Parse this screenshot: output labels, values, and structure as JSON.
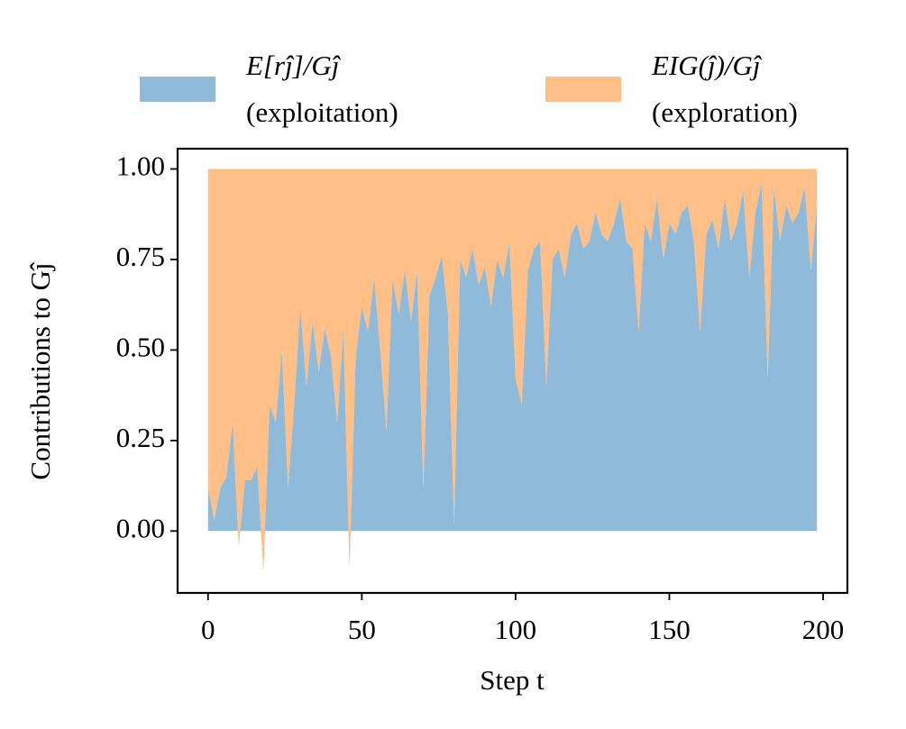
{
  "chart_data": {
    "type": "stackplot",
    "ylabel": "Contributions to Gĵ",
    "xlabel": "Step t",
    "x": [
      0,
      2,
      4,
      6,
      8,
      10,
      12,
      14,
      16,
      18,
      20,
      22,
      24,
      26,
      28,
      30,
      32,
      34,
      36,
      38,
      40,
      42,
      44,
      46,
      48,
      50,
      52,
      54,
      56,
      58,
      60,
      62,
      64,
      66,
      68,
      70,
      72,
      74,
      76,
      78,
      80,
      82,
      84,
      86,
      88,
      90,
      92,
      94,
      96,
      98,
      100,
      102,
      104,
      106,
      108,
      110,
      112,
      114,
      116,
      118,
      120,
      122,
      124,
      126,
      128,
      130,
      132,
      134,
      136,
      138,
      140,
      142,
      144,
      146,
      148,
      150,
      152,
      154,
      156,
      158,
      160,
      162,
      164,
      166,
      168,
      170,
      172,
      174,
      176,
      178,
      180,
      182,
      184,
      186,
      188,
      190,
      192,
      194,
      196,
      198
    ],
    "series": [
      {
        "name": "E[rĵ]/Gĵ",
        "subname": "(exploitation)",
        "color": "#8fbad9",
        "values": [
          0.12,
          0.03,
          0.12,
          0.15,
          0.3,
          -0.04,
          0.14,
          0.14,
          0.18,
          -0.11,
          0.35,
          0.3,
          0.5,
          0.12,
          0.35,
          0.62,
          0.4,
          0.58,
          0.44,
          0.56,
          0.48,
          0.3,
          0.56,
          -0.1,
          0.48,
          0.62,
          0.55,
          0.7,
          0.5,
          0.28,
          0.7,
          0.6,
          0.72,
          0.58,
          0.72,
          0.12,
          0.65,
          0.7,
          0.76,
          0.6,
          0.02,
          0.75,
          0.7,
          0.78,
          0.68,
          0.73,
          0.62,
          0.75,
          0.7,
          0.8,
          0.42,
          0.35,
          0.72,
          0.78,
          0.8,
          0.4,
          0.75,
          0.78,
          0.7,
          0.82,
          0.85,
          0.78,
          0.8,
          0.88,
          0.82,
          0.8,
          0.85,
          0.92,
          0.8,
          0.78,
          0.55,
          0.85,
          0.8,
          0.92,
          0.75,
          0.85,
          0.82,
          0.88,
          0.9,
          0.8,
          0.55,
          0.82,
          0.86,
          0.78,
          0.92,
          0.8,
          0.85,
          0.94,
          0.7,
          0.88,
          0.96,
          0.42,
          0.95,
          0.8,
          0.9,
          0.85,
          0.88,
          0.95,
          0.72,
          0.9
        ]
      },
      {
        "name": "EIG(ĵ)/Gĵ",
        "subname": "(exploration)",
        "color": "#ffbf86",
        "values": [
          0.88,
          0.97,
          0.88,
          0.85,
          0.7,
          1.04,
          0.86,
          0.86,
          0.82,
          1.11,
          0.65,
          0.7,
          0.5,
          0.88,
          0.65,
          0.38,
          0.6,
          0.42,
          0.56,
          0.44,
          0.52,
          0.7,
          0.44,
          1.1,
          0.52,
          0.38,
          0.45,
          0.3,
          0.5,
          0.72,
          0.3,
          0.4,
          0.28,
          0.42,
          0.28,
          0.88,
          0.35,
          0.3,
          0.24,
          0.4,
          0.98,
          0.25,
          0.3,
          0.22,
          0.32,
          0.27,
          0.38,
          0.25,
          0.3,
          0.2,
          0.58,
          0.65,
          0.28,
          0.22,
          0.2,
          0.6,
          0.25,
          0.22,
          0.3,
          0.18,
          0.15,
          0.22,
          0.2,
          0.12,
          0.18,
          0.2,
          0.15,
          0.08,
          0.2,
          0.22,
          0.45,
          0.15,
          0.2,
          0.08,
          0.25,
          0.15,
          0.18,
          0.12,
          0.1,
          0.2,
          0.45,
          0.18,
          0.14,
          0.22,
          0.08,
          0.2,
          0.15,
          0.06,
          0.3,
          0.12,
          0.04,
          0.58,
          0.05,
          0.2,
          0.1,
          0.15,
          0.12,
          0.05,
          0.28,
          0.1
        ]
      }
    ],
    "xlim": [
      -9.9,
      207.9
    ],
    "ylim": [
      -0.171,
      1.056
    ],
    "xticks": [
      0,
      50,
      100,
      150,
      200
    ],
    "yticks": [
      {
        "value": 0,
        "label": "0.00"
      },
      {
        "value": 0.25,
        "label": "0.25"
      },
      {
        "value": 0.5,
        "label": "0.50"
      },
      {
        "value": 0.75,
        "label": "0.75"
      },
      {
        "value": 1,
        "label": "1.00"
      }
    ],
    "legend": "top"
  }
}
